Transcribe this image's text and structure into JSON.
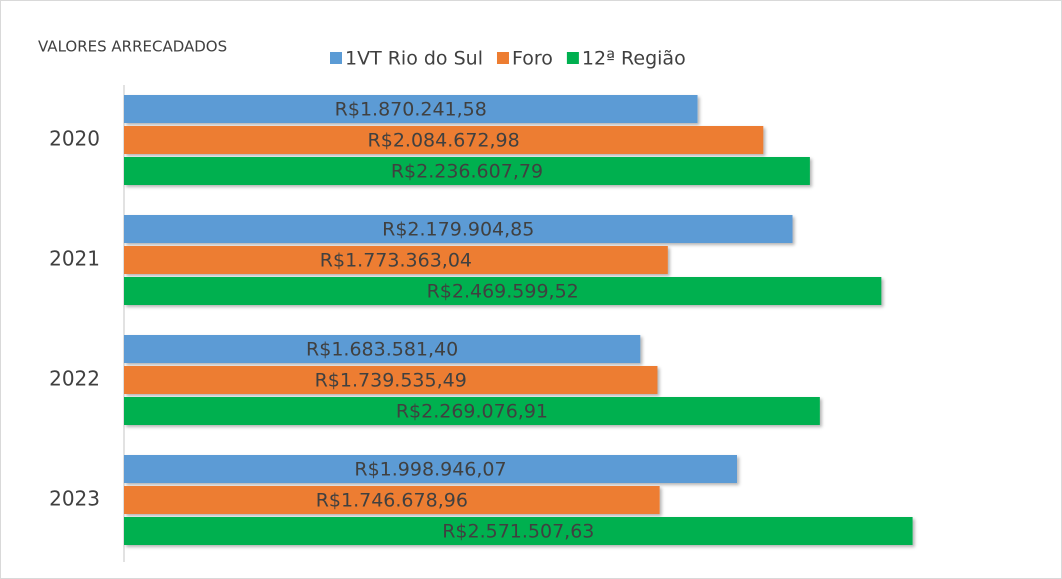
{
  "chart_data": {
    "type": "bar",
    "orientation": "horizontal",
    "title": "VALORES ARRECADADOS",
    "categories": [
      "2020",
      "2021",
      "2022",
      "2023"
    ],
    "series": [
      {
        "name": "1VT Rio do Sul",
        "color": "#5b9bd5",
        "values": [
          1870241.58,
          2179904.85,
          1683581.4,
          1998946.07
        ],
        "value_labels": [
          "R$1.870.241,58",
          "R$2.179.904,85",
          "R$1.683.581,40",
          "R$1.998.946,07"
        ]
      },
      {
        "name": "Foro",
        "color": "#ed7d31",
        "values": [
          2084672.98,
          1773363.04,
          1739535.49,
          1746678.96
        ],
        "value_labels": [
          "R$2.084.672,98",
          "R$1.773.363,04",
          "R$1.739.535,49",
          "R$1.746.678,96"
        ]
      },
      {
        "name": "12ª Região",
        "color": "#00b050",
        "values": [
          2236607.79,
          2469599.52,
          2269076.91,
          2571507.63
        ],
        "value_labels": [
          "R$2.236.607,79",
          "R$2.469.599,52",
          "R$2.269.076,91",
          "R$2.571.507,63"
        ]
      }
    ],
    "xlim": [
      0,
      3000000
    ],
    "legend": "top"
  }
}
